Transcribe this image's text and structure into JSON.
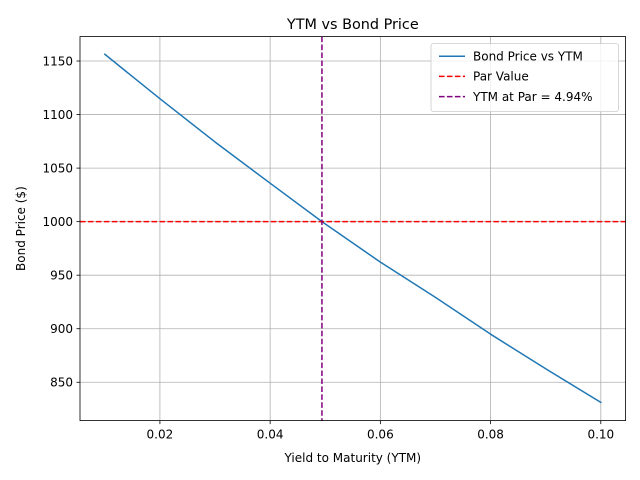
{
  "chart_data": {
    "type": "line",
    "title": "YTM vs Bond Price",
    "xlabel": "Yield to Maturity (YTM)",
    "ylabel": "Bond Price ($)",
    "xlim": [
      0.0055,
      0.1045
    ],
    "ylim": [
      814.2,
      1172.8
    ],
    "xticks": [
      0.02,
      0.04,
      0.06,
      0.08,
      0.1
    ],
    "xtick_labels": [
      "0.02",
      "0.04",
      "0.06",
      "0.08",
      "0.10"
    ],
    "yticks": [
      850,
      900,
      950,
      1000,
      1050,
      1100,
      1150
    ],
    "ytick_labels": [
      "850",
      "900",
      "950",
      "1000",
      "1050",
      "1100",
      "1150"
    ],
    "grid": true,
    "legend_position": "top-right",
    "series": [
      {
        "name": "Bond Price vs YTM",
        "color": "#1f77b4",
        "style": "solid",
        "x": [
          0.01,
          0.02,
          0.03,
          0.04,
          0.0494,
          0.06,
          0.07,
          0.08,
          0.09,
          0.1
        ],
        "y": [
          1156.3,
          1114.8,
          1074.4,
          1035.9,
          1000.0,
          962.2,
          929.3,
          894.9,
          862.6,
          831.2
        ]
      }
    ],
    "reference_lines": [
      {
        "name": "Par Value",
        "orientation": "horizontal",
        "value": 1000,
        "color": "#ff0000",
        "style": "dashed"
      },
      {
        "name": "YTM at Par = 4.94%",
        "orientation": "vertical",
        "value": 0.0494,
        "color": "#800080",
        "style": "dashed"
      }
    ]
  }
}
